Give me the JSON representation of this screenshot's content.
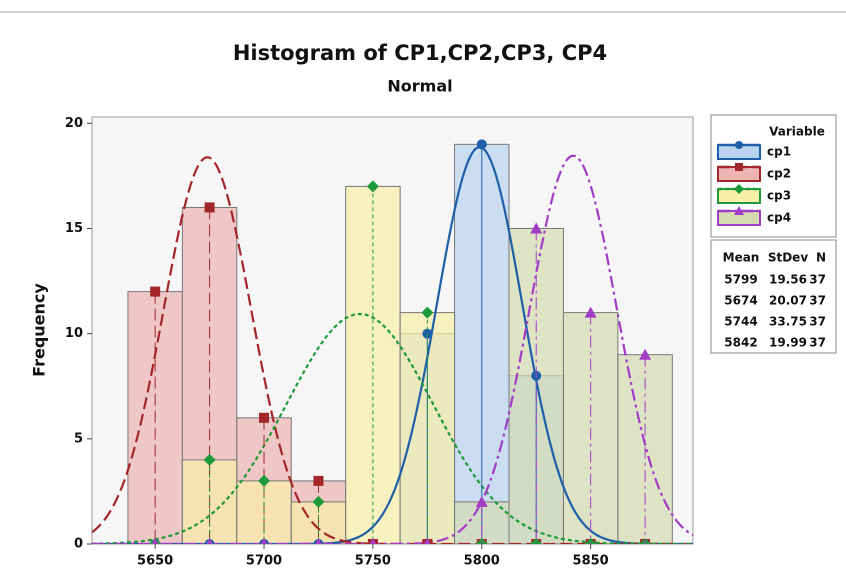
{
  "chart_data": {
    "type": "histogram",
    "title": "Histogram of CP1,CP2,CP3, CP4",
    "subtitle": "Normal",
    "y_label": "Frequency",
    "bins": [
      5637.5,
      5662.5,
      5687.5,
      5712.5,
      5737.5,
      5762.5,
      5787.5,
      5812.5,
      5837.5,
      5862.5,
      5887.5
    ],
    "series": [
      {
        "name": "cp1",
        "color": "#1f5fa8",
        "bar_color": "#b9d3ee",
        "marker": "circle",
        "line_style": "solid",
        "values": [
          0,
          0,
          0,
          0,
          0,
          10,
          19,
          8,
          0,
          0
        ],
        "mean": 5799,
        "stdev": 19.56,
        "n": 37
      },
      {
        "name": "cp2",
        "color": "#a3262a",
        "bar_color": "#eeb4b4",
        "marker": "square",
        "line_style": "dashed",
        "values": [
          12,
          16,
          6,
          3,
          0,
          0,
          0,
          0,
          0,
          0
        ],
        "mean": 5674,
        "stdev": 20.07,
        "n": 37
      },
      {
        "name": "cp3",
        "color": "#1f9a3a",
        "bar_color": "#f8efa8",
        "marker": "diamond",
        "line_style": "dotted",
        "values": [
          0,
          4,
          3,
          2,
          17,
          11,
          0,
          0,
          0,
          0
        ],
        "mean": 5744,
        "stdev": 33.75,
        "n": 37
      },
      {
        "name": "cp4",
        "color": "#a23dc6",
        "bar_color": "#d4dbb0",
        "marker": "triangle",
        "line_style": "dashdot",
        "values": [
          0,
          0,
          0,
          0,
          0,
          0,
          2,
          15,
          11,
          9
        ],
        "mean": 5842,
        "stdev": 19.99,
        "n": 37
      }
    ],
    "legend_title": "Variable",
    "table_headers": [
      "Mean",
      "StDev",
      "N"
    ],
    "xlim": [
      5621,
      5897
    ],
    "xticks": [
      5650,
      5700,
      5750,
      5800,
      5850
    ],
    "ylim": [
      0,
      20.3
    ],
    "yticks": [
      0,
      5,
      10,
      15,
      20
    ]
  }
}
